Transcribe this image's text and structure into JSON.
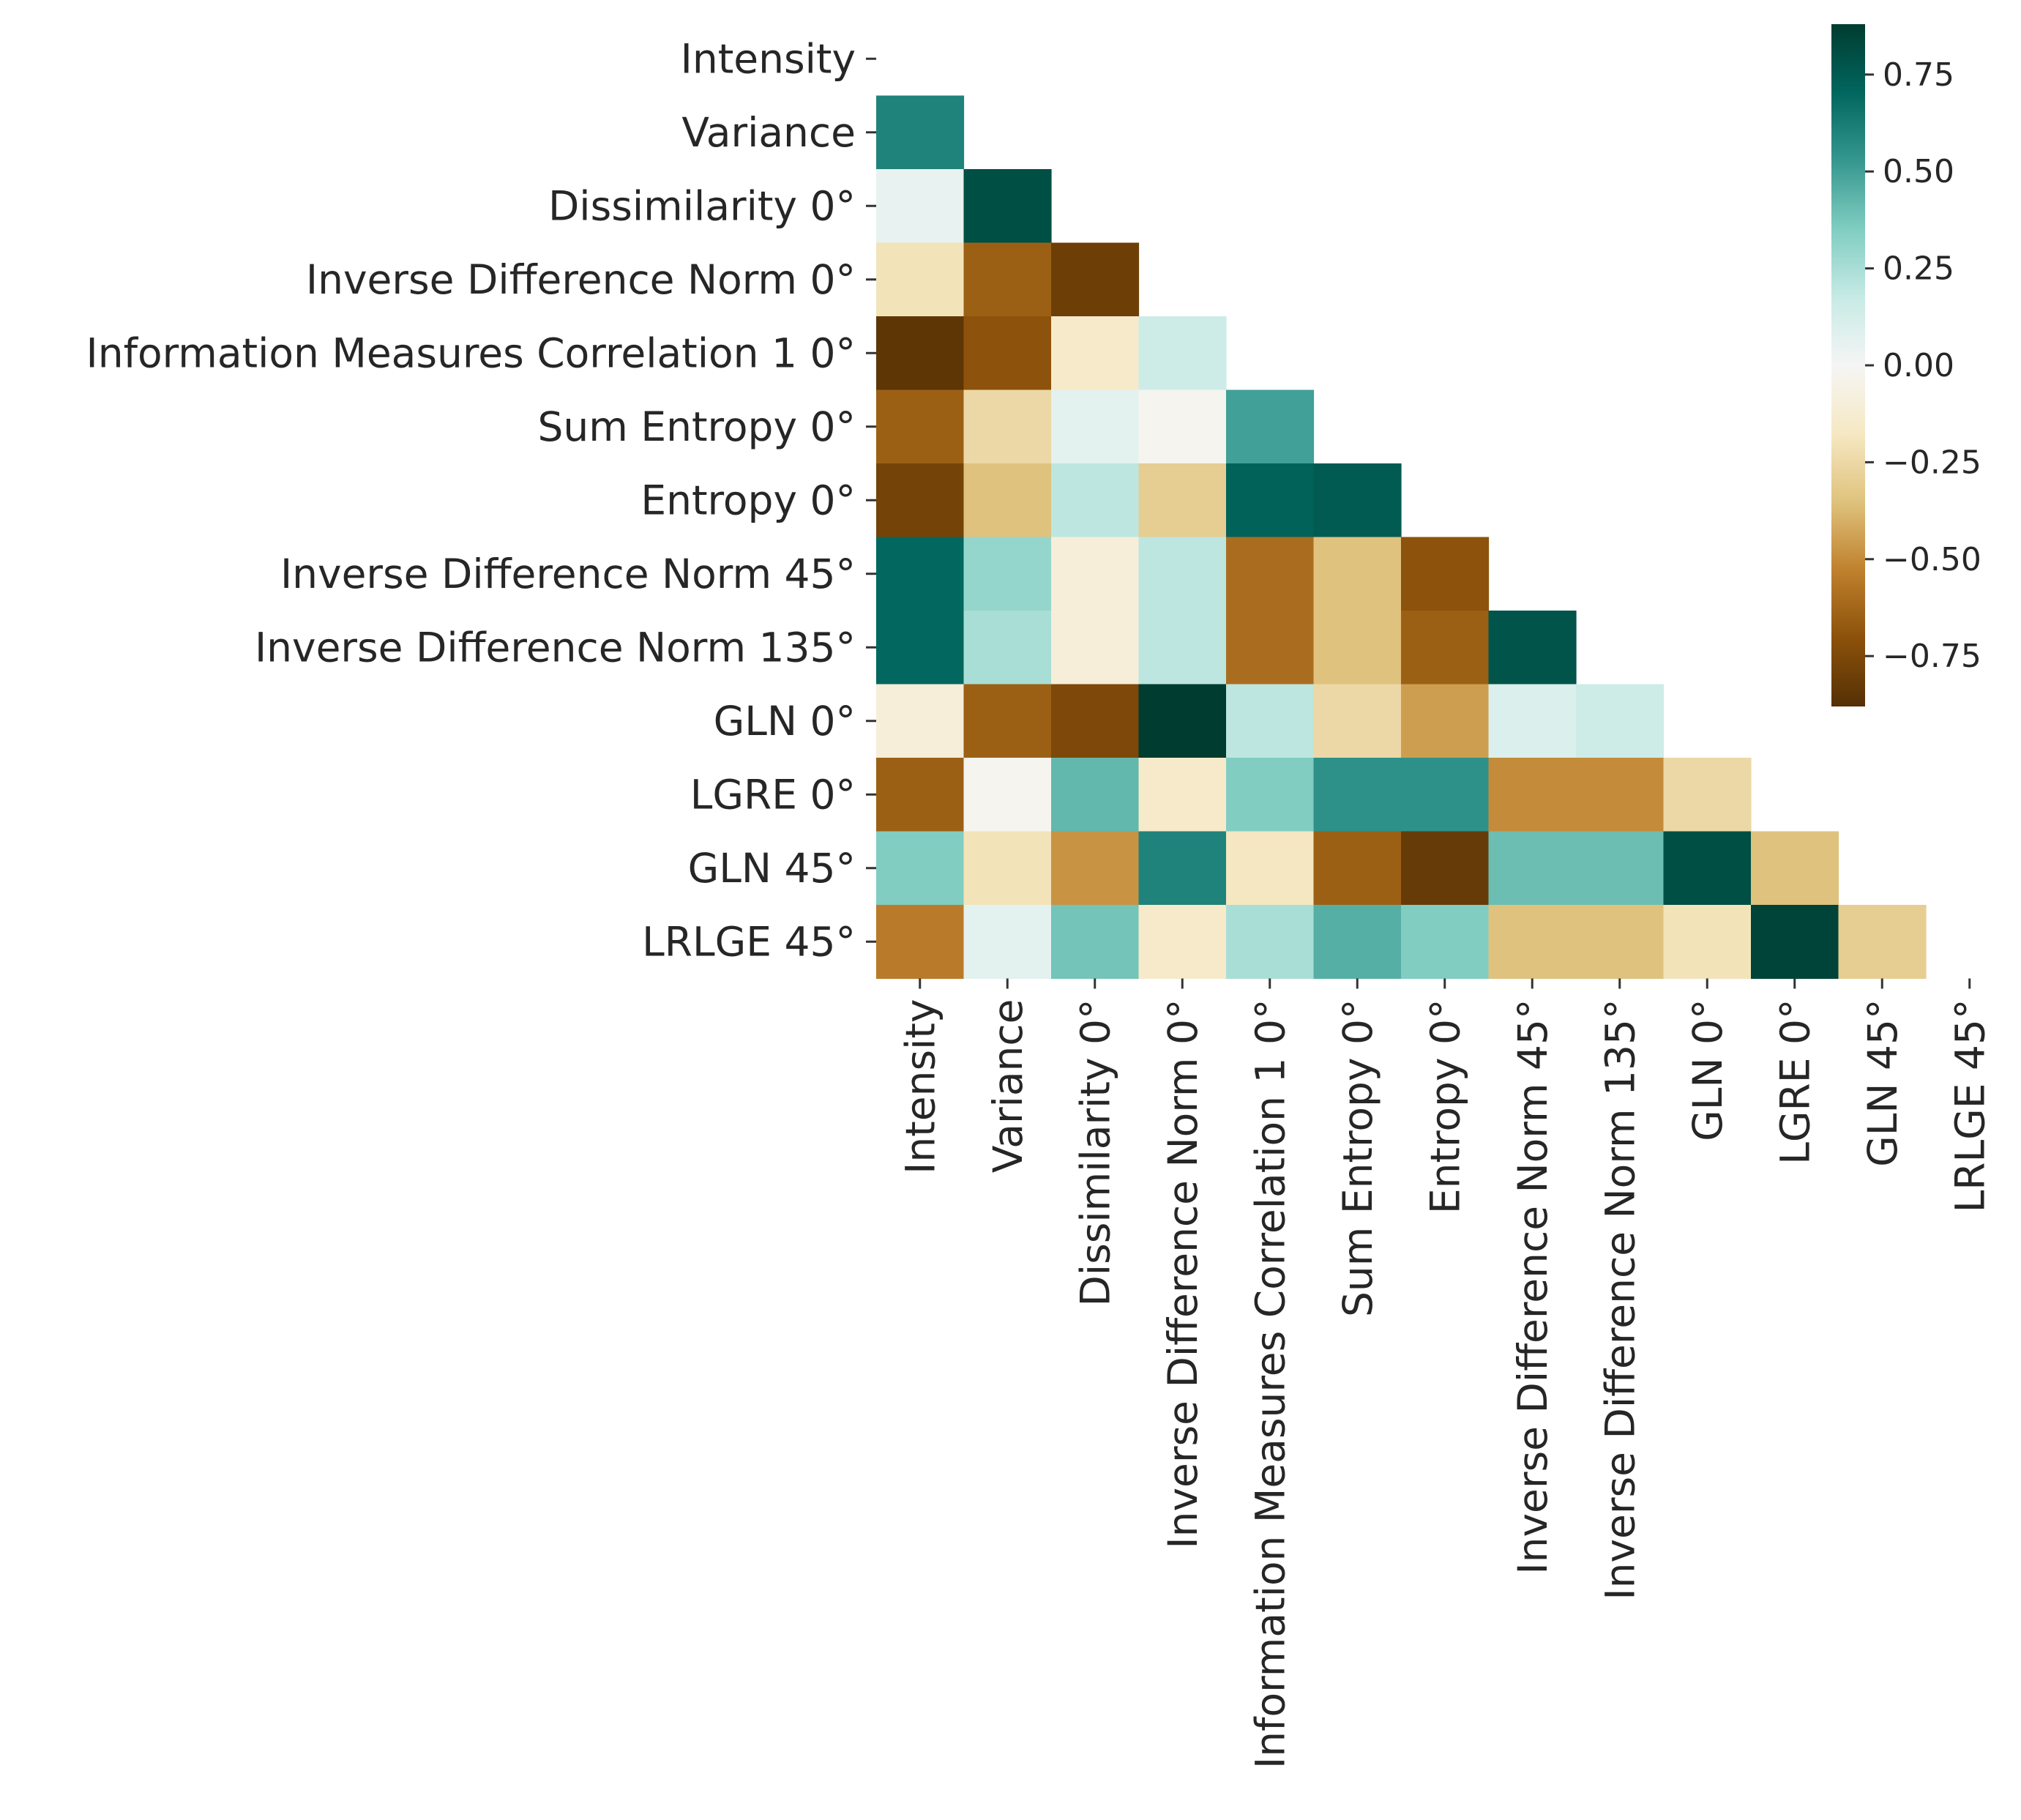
{
  "chart_data": {
    "type": "heatmap",
    "title": "",
    "xlabel": "",
    "ylabel": "",
    "mask": "upper-triangle-including-diagonal",
    "colormap": "BrBG",
    "vmin": -0.88,
    "vmax": 0.88,
    "labels": [
      "Intensity",
      "Variance",
      "Dissimilarity 0°",
      "Inverse Difference Norm 0°",
      "Information Measures Correlation 1 0°",
      "Sum Entropy 0°",
      "Entropy 0°",
      "Inverse Difference Norm 45°",
      "Inverse Difference Norm 135°",
      "GLN 0°",
      "LGRE 0°",
      "GLN 45°",
      "LRLGE 45°"
    ],
    "values": [
      [],
      [
        0.6
      ],
      [
        0.05,
        0.8
      ],
      [
        -0.2,
        -0.65,
        -0.8
      ],
      [
        -0.85,
        -0.7,
        -0.15,
        0.15
      ],
      [
        -0.65,
        -0.25,
        0.07,
        -0.02,
        0.5
      ],
      [
        -0.78,
        -0.35,
        0.2,
        -0.3,
        0.72,
        0.75
      ],
      [
        0.7,
        0.3,
        -0.1,
        0.2,
        -0.6,
        -0.35,
        -0.7
      ],
      [
        0.7,
        0.25,
        -0.1,
        0.2,
        -0.6,
        -0.35,
        -0.65,
        0.78
      ],
      [
        -0.1,
        -0.65,
        -0.75,
        0.88,
        0.2,
        -0.25,
        -0.45,
        0.1,
        0.15
      ],
      [
        -0.65,
        -0.02,
        0.42,
        -0.15,
        0.35,
        0.55,
        0.55,
        -0.5,
        -0.5,
        -0.25
      ],
      [
        0.35,
        -0.2,
        -0.48,
        0.6,
        -0.18,
        -0.65,
        -0.82,
        0.4,
        0.4,
        0.8,
        -0.35
      ],
      [
        -0.55,
        0.07,
        0.38,
        -0.15,
        0.25,
        0.45,
        0.35,
        -0.35,
        -0.35,
        -0.2,
        0.85,
        -0.3
      ]
    ],
    "colorbar": {
      "ticks": [
        0.75,
        0.5,
        0.25,
        0.0,
        -0.25,
        -0.5,
        -0.75
      ],
      "tick_labels": [
        "0.75",
        "0.50",
        "0.25",
        "0.00",
        "−0.25",
        "−0.50",
        "−0.75"
      ]
    }
  }
}
